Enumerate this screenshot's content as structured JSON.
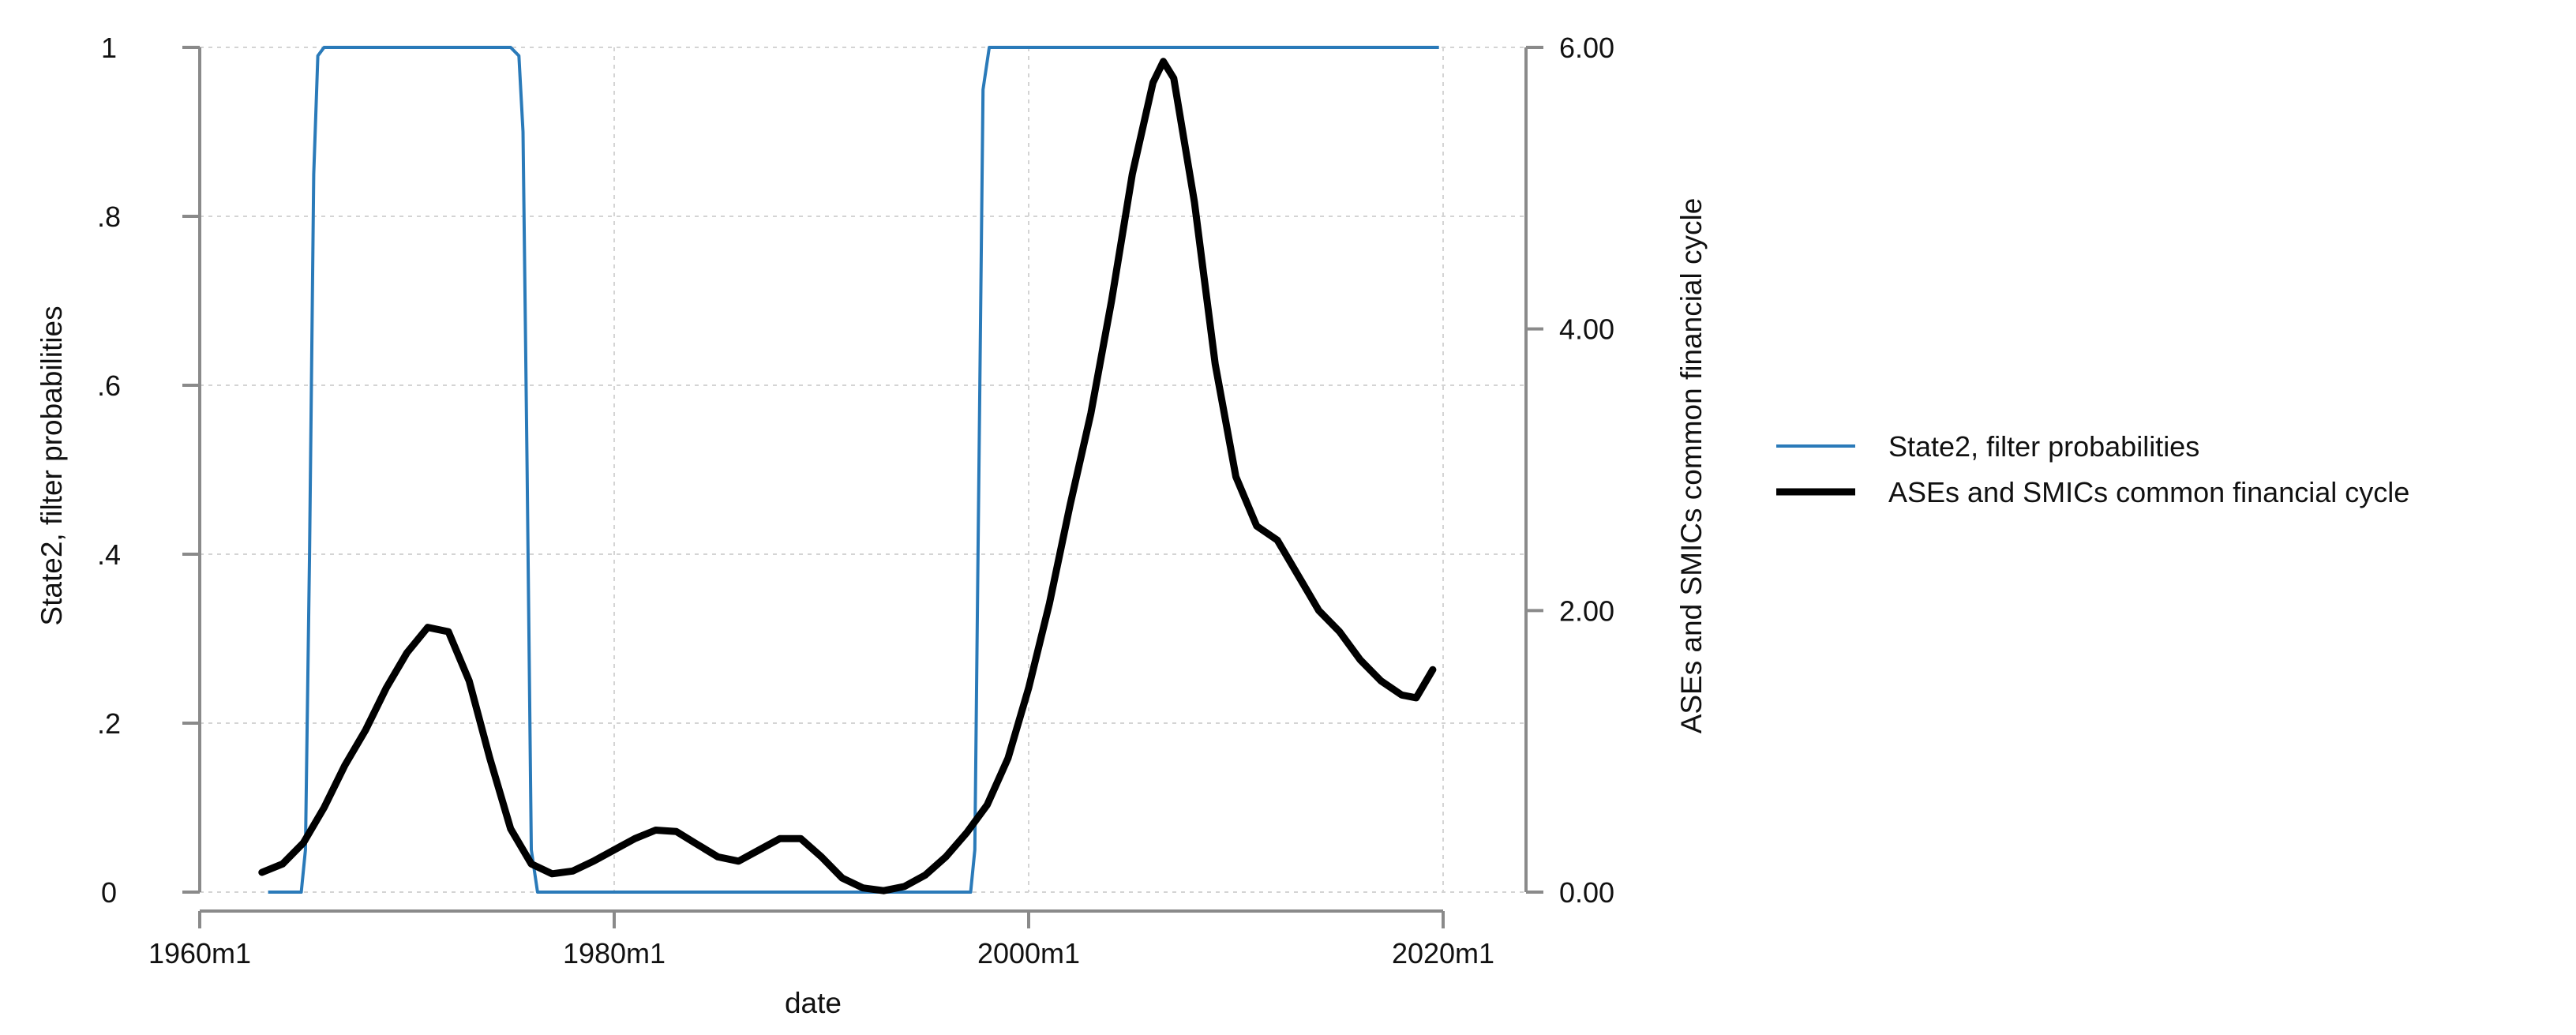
{
  "chart_data": {
    "type": "line",
    "title": "",
    "xlabel": "date",
    "ylabel": "State2, filter probabilities",
    "y2label": "ASEs and SMICs common financial cycle",
    "x_ticks": [
      "1960m1",
      "1980m1",
      "2000m1",
      "2020m1"
    ],
    "y_ticks": [
      "0",
      ".2",
      ".4",
      ".6",
      ".8",
      "1"
    ],
    "y2_ticks": [
      "0.00",
      "2.00",
      "4.00",
      "6.00"
    ],
    "xlim": [
      1960.0,
      2024.0
    ],
    "ylim": [
      0,
      1
    ],
    "y2lim": [
      0,
      6
    ],
    "grid": true,
    "legend_position": "right",
    "series": [
      {
        "name": "State2, filter probabilities",
        "axis": "left",
        "color": "#2a7ab9",
        "x": [
          1963.3,
          1964.9,
          1965.1,
          1965.3,
          1965.5,
          1965.7,
          1966.0,
          1975.0,
          1975.4,
          1975.6,
          1975.8,
          1976.0,
          1976.3,
          1997.2,
          1997.4,
          1997.6,
          1997.8,
          1998.1,
          2019.8
        ],
        "values": [
          0.0,
          0.0,
          0.05,
          0.4,
          0.85,
          0.99,
          1.0,
          1.0,
          0.99,
          0.9,
          0.5,
          0.05,
          0.0,
          0.0,
          0.05,
          0.5,
          0.95,
          1.0,
          1.0
        ]
      },
      {
        "name": "ASEs and SMICs common financial cycle",
        "axis": "right",
        "color": "#000000",
        "x": [
          1963.0,
          1964.0,
          1965.0,
          1966.0,
          1967.0,
          1968.0,
          1969.0,
          1970.0,
          1971.0,
          1972.0,
          1973.0,
          1974.0,
          1975.0,
          1976.0,
          1977.0,
          1978.0,
          1979.0,
          1980.0,
          1981.0,
          1982.0,
          1983.0,
          1984.0,
          1985.0,
          1986.0,
          1987.0,
          1988.0,
          1989.0,
          1990.0,
          1991.0,
          1992.0,
          1993.0,
          1994.0,
          1995.0,
          1996.0,
          1997.0,
          1998.0,
          1999.0,
          2000.0,
          2001.0,
          2002.0,
          2003.0,
          2004.0,
          2005.0,
          2006.0,
          2006.5,
          2007.0,
          2008.0,
          2009.0,
          2010.0,
          2011.0,
          2012.0,
          2013.0,
          2014.0,
          2015.0,
          2016.0,
          2017.0,
          2018.0,
          2018.7,
          2019.5
        ],
        "values": [
          0.14,
          0.2,
          0.35,
          0.6,
          0.9,
          1.15,
          1.45,
          1.7,
          1.88,
          1.85,
          1.5,
          0.95,
          0.45,
          0.2,
          0.13,
          0.15,
          0.22,
          0.3,
          0.38,
          0.44,
          0.43,
          0.34,
          0.25,
          0.22,
          0.3,
          0.38,
          0.38,
          0.25,
          0.1,
          0.03,
          0.01,
          0.04,
          0.12,
          0.25,
          0.42,
          0.62,
          0.95,
          1.45,
          2.05,
          2.75,
          3.4,
          4.2,
          5.1,
          5.75,
          5.9,
          5.78,
          4.9,
          3.75,
          2.95,
          2.6,
          2.5,
          2.25,
          2.0,
          1.85,
          1.65,
          1.5,
          1.4,
          1.38,
          1.58
        ]
      }
    ]
  }
}
